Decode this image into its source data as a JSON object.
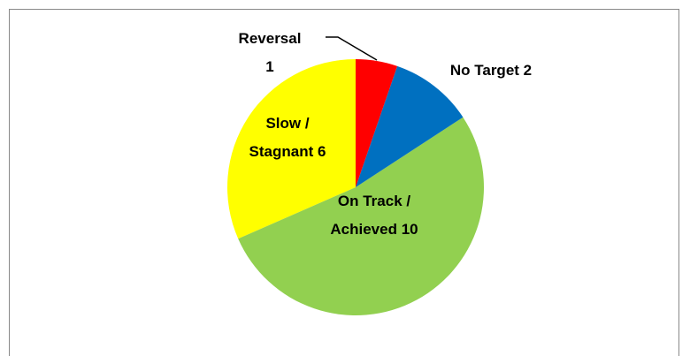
{
  "chart_data": {
    "type": "pie",
    "categories": [
      "Reversal",
      "No Target",
      "On Track / Achieved",
      "Slow / Stagnant"
    ],
    "values": [
      1,
      2,
      10,
      6
    ],
    "colors": [
      "#ff0000",
      "#0070c0",
      "#92d050",
      "#ffff00"
    ]
  }
}
